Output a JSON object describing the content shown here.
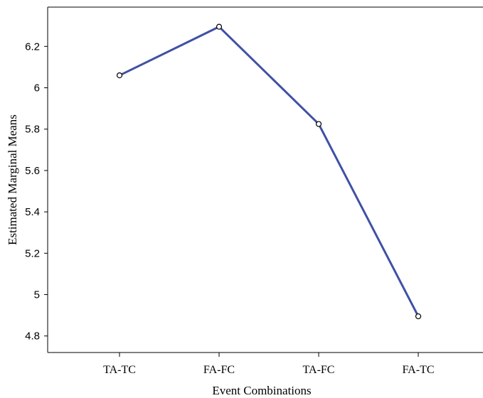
{
  "chart_data": {
    "type": "line",
    "title": "",
    "xlabel": "Event Combinations",
    "ylabel": "Estimated Marginal Means",
    "categories": [
      "TA-TC",
      "FA-FC",
      "TA-FC",
      "FA-TC"
    ],
    "series": [
      {
        "values": [
          6.06,
          6.295,
          5.825,
          4.895
        ]
      }
    ],
    "ylim": [
      4.72,
      6.39
    ],
    "yticks": [
      4.8,
      5,
      5.2,
      5.4,
      5.6,
      5.8,
      6,
      6.2
    ],
    "ytick_labels": [
      "4.8",
      "5",
      "5.2",
      "5.4",
      "5.6",
      "5.8",
      "6",
      "6.2"
    ],
    "grid": false,
    "legend": "none",
    "colors": {
      "line": "#3f51a5",
      "marker": "#000000",
      "axis": "#000000"
    }
  }
}
